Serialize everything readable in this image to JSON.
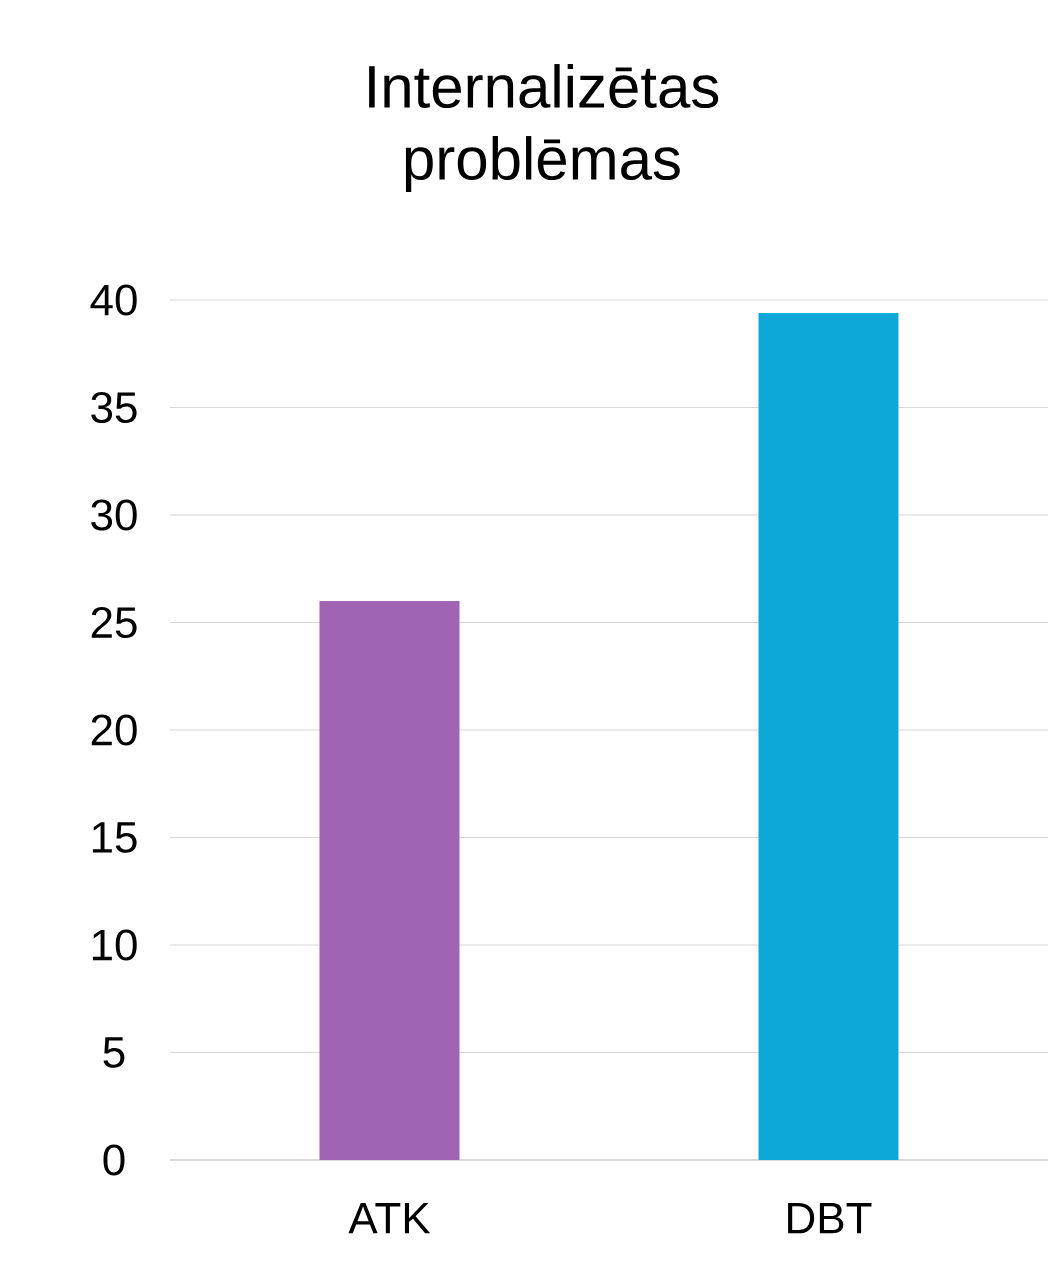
{
  "chart_data": {
    "type": "bar",
    "title": "Internalizētas problēmas",
    "categories": [
      "ATK",
      "DBT"
    ],
    "values": [
      26,
      39.4
    ],
    "colors": [
      "#a163b4",
      "#0ea8d8"
    ],
    "ylim": [
      0,
      40
    ],
    "yticks": [
      0,
      5,
      10,
      15,
      20,
      25,
      30,
      35,
      40
    ],
    "grid": "y"
  }
}
